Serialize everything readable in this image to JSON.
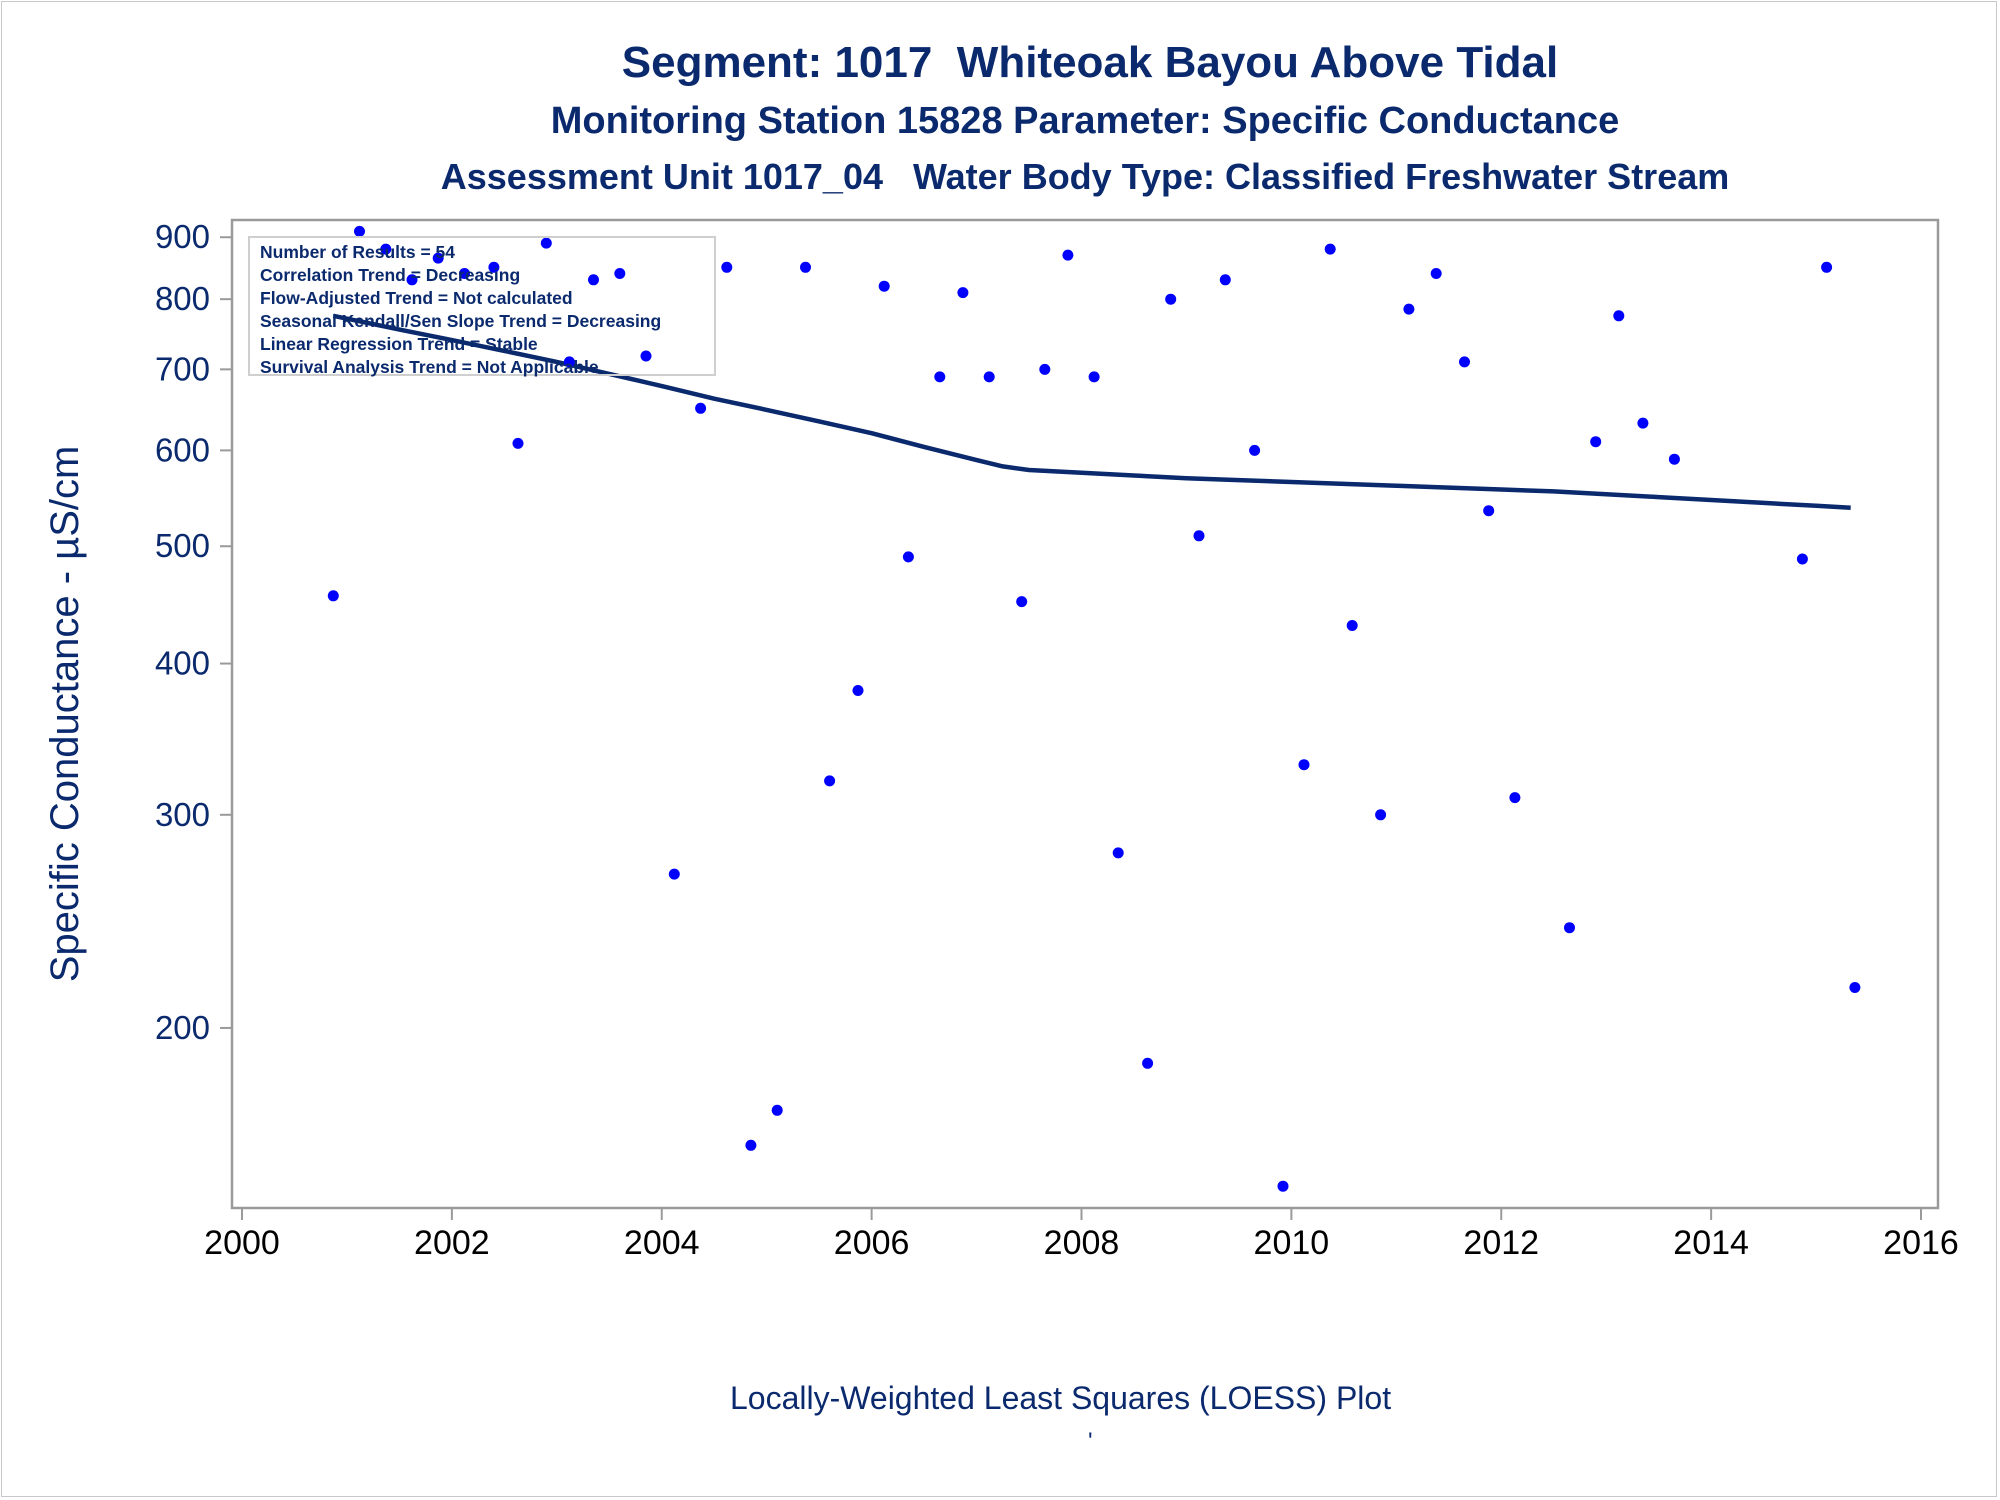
{
  "titles": {
    "line1": "Segment: 1017  Whiteoak Bayou Above Tidal",
    "line2": "Monitoring Station 15828 Parameter: Specific Conductance",
    "line3": "Assessment Unit 1017_04   Water Body Type: Classified Freshwater Stream"
  },
  "legend": [
    "Number of Results = 54",
    "Correlation Trend = Decreasing",
    "Flow-Adjusted Trend = Not calculated",
    "Seasonal Kendall/Sen Slope Trend = Decreasing",
    "Linear Regression Trend = Stable",
    "Survival Analysis Trend = Not Applicable"
  ],
  "footer": {
    "caption": "Locally-Weighted Least Squares (LOESS) Plot",
    "mark": "'"
  },
  "colors": {
    "text": "#0b2a6e",
    "points": "#0000ff",
    "loess": "#0b2a6e",
    "axis": "#9a9a9a"
  },
  "chart_data": {
    "type": "scatter",
    "ylabel": "Specific Conductance -  µS/cm",
    "yscale": "log",
    "xlim": [
      2000,
      2016
    ],
    "ylim": [
      142,
      930
    ],
    "xticks": [
      2000,
      2002,
      2004,
      2006,
      2008,
      2010,
      2012,
      2014,
      2016
    ],
    "yticks": [
      200,
      300,
      400,
      500,
      600,
      700,
      800,
      900
    ],
    "series": [
      {
        "kind": "points",
        "x": [
          2000.87,
          2001.12,
          2001.37,
          2001.62,
          2001.87,
          2002.12,
          2002.4,
          2002.63,
          2002.9,
          2003.12,
          2003.35,
          2003.6,
          2003.85,
          2004.12,
          2004.37,
          2004.62,
          2004.85,
          2005.1,
          2005.37,
          2005.6,
          2005.87,
          2006.12,
          2006.35,
          2006.65,
          2006.87,
          2007.12,
          2007.43,
          2007.65,
          2007.87,
          2008.12,
          2008.35,
          2008.63,
          2008.85,
          2009.12,
          2009.37,
          2009.65,
          2009.92,
          2010.12,
          2010.37,
          2010.58,
          2010.85,
          2011.12,
          2011.38,
          2011.65,
          2011.88,
          2012.13,
          2012.65,
          2012.9,
          2013.12,
          2013.35,
          2013.65,
          2014.87,
          2015.1,
          2015.37
        ],
        "y": [
          455,
          910,
          880,
          830,
          865,
          840,
          850,
          608,
          890,
          710,
          830,
          840,
          718,
          268,
          650,
          850,
          160,
          171,
          850,
          320,
          380,
          820,
          490,
          690,
          810,
          690,
          450,
          700,
          870,
          690,
          279,
          187,
          800,
          510,
          830,
          600,
          148,
          330,
          880,
          430,
          300,
          785,
          840,
          710,
          535,
          310,
          242,
          610,
          775,
          632,
          590,
          488,
          850,
          216
        ]
      },
      {
        "kind": "loess",
        "x": [
          2000.87,
          2001.5,
          2002.0,
          2002.5,
          2003.0,
          2003.5,
          2004.0,
          2004.5,
          2005.0,
          2005.5,
          2006.0,
          2006.5,
          2007.0,
          2007.25,
          2007.5,
          2008.0,
          2008.5,
          2009.0,
          2009.5,
          2010.0,
          2010.5,
          2011.0,
          2011.5,
          2012.0,
          2012.5,
          2013.0,
          2013.5,
          2014.0,
          2014.5,
          2015.0,
          2015.33
        ],
        "y": [
          775,
          755,
          740,
          725,
          710,
          694,
          678,
          662,
          648,
          634,
          620,
          604,
          589,
          582,
          578,
          575,
          572,
          569,
          567,
          565,
          563,
          561,
          559,
          557,
          555,
          552,
          549,
          546,
          543,
          540,
          538
        ]
      }
    ]
  }
}
